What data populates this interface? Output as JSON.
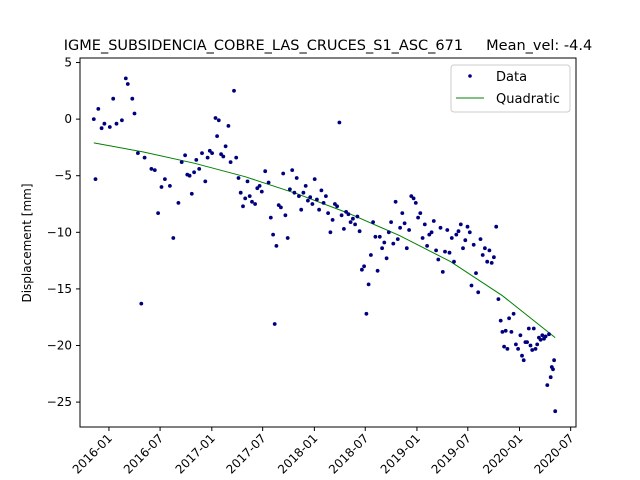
{
  "chart_data": {
    "type": "scatter",
    "title": "IGME_SUBSIDENCIA_COBRE_LAS_CRUCES_S1_ASC_671     Mean_vel: -4.4",
    "xlabel": "",
    "ylabel": "Displacement [mm]",
    "xlim": [
      "2015-09-20",
      "2020-07-20"
    ],
    "ylim": [
      -27.2,
      5.4
    ],
    "x_ticks": [
      "2016-01",
      "2016-07",
      "2017-01",
      "2017-07",
      "2018-01",
      "2018-07",
      "2019-01",
      "2019-07",
      "2020-01",
      "2020-07"
    ],
    "y_ticks": [
      5,
      0,
      -5,
      -10,
      -15,
      -20,
      -25
    ],
    "legend_position": "top-right",
    "colors": {
      "data": "#00007f",
      "fit": "#008000",
      "axes": "#000000"
    },
    "series": [
      {
        "name": "Data",
        "style": "markers",
        "points": [
          [
            "2015-11-08",
            0.0
          ],
          [
            "2015-11-14",
            -5.3
          ],
          [
            "2015-11-24",
            0.9
          ],
          [
            "2015-12-06",
            -0.8
          ],
          [
            "2015-12-16",
            -0.4
          ],
          [
            "2016-01-04",
            -0.7
          ],
          [
            "2016-01-16",
            1.8
          ],
          [
            "2016-01-28",
            -0.4
          ],
          [
            "2016-02-16",
            -0.1
          ],
          [
            "2016-03-01",
            3.6
          ],
          [
            "2016-03-08",
            3.1
          ],
          [
            "2016-03-24",
            1.8
          ],
          [
            "2016-04-01",
            0.5
          ],
          [
            "2016-04-13",
            -3.0
          ],
          [
            "2016-04-25",
            -16.3
          ],
          [
            "2016-05-07",
            -3.4
          ],
          [
            "2016-05-31",
            -4.4
          ],
          [
            "2016-06-12",
            -4.5
          ],
          [
            "2016-06-24",
            -8.3
          ],
          [
            "2016-07-06",
            -6.0
          ],
          [
            "2016-07-18",
            -5.3
          ],
          [
            "2016-08-05",
            -5.9
          ],
          [
            "2016-08-17",
            -10.5
          ],
          [
            "2016-09-04",
            -7.4
          ],
          [
            "2016-09-16",
            -3.8
          ],
          [
            "2016-09-28",
            -3.2
          ],
          [
            "2016-10-06",
            -4.9
          ],
          [
            "2016-10-14",
            -5.0
          ],
          [
            "2016-10-22",
            -6.6
          ],
          [
            "2016-10-30",
            -4.7
          ],
          [
            "2016-11-07",
            -3.6
          ],
          [
            "2016-11-17",
            -4.4
          ],
          [
            "2016-11-27",
            -3.0
          ],
          [
            "2016-12-09",
            -5.5
          ],
          [
            "2016-12-17",
            -3.4
          ],
          [
            "2016-12-25",
            -2.8
          ],
          [
            "2017-01-02",
            -3.0
          ],
          [
            "2017-01-14",
            0.1
          ],
          [
            "2017-01-20",
            -1.5
          ],
          [
            "2017-01-26",
            -0.1
          ],
          [
            "2017-02-03",
            -3.1
          ],
          [
            "2017-02-11",
            -3.3
          ],
          [
            "2017-02-19",
            -2.4
          ],
          [
            "2017-03-01",
            -0.6
          ],
          [
            "2017-03-09",
            -3.8
          ],
          [
            "2017-03-21",
            2.5
          ],
          [
            "2017-03-29",
            -3.4
          ],
          [
            "2017-04-06",
            -5.2
          ],
          [
            "2017-04-14",
            -6.5
          ],
          [
            "2017-04-22",
            -7.7
          ],
          [
            "2017-04-30",
            -7.0
          ],
          [
            "2017-05-08",
            -5.5
          ],
          [
            "2017-05-16",
            -6.8
          ],
          [
            "2017-05-24",
            -7.3
          ],
          [
            "2017-06-04",
            -7.5
          ],
          [
            "2017-06-12",
            -6.1
          ],
          [
            "2017-06-20",
            -5.9
          ],
          [
            "2017-06-28",
            -6.4
          ],
          [
            "2017-07-10",
            -4.6
          ],
          [
            "2017-07-22",
            -5.6
          ],
          [
            "2017-07-30",
            -8.7
          ],
          [
            "2017-08-07",
            -10.2
          ],
          [
            "2017-08-13",
            -18.1
          ],
          [
            "2017-08-19",
            -11.2
          ],
          [
            "2017-08-27",
            -7.6
          ],
          [
            "2017-09-04",
            -7.8
          ],
          [
            "2017-09-12",
            -4.8
          ],
          [
            "2017-09-20",
            -8.5
          ],
          [
            "2017-09-28",
            -10.5
          ],
          [
            "2017-10-06",
            -6.2
          ],
          [
            "2017-10-14",
            -4.5
          ],
          [
            "2017-10-22",
            -6.5
          ],
          [
            "2017-10-30",
            -5.2
          ],
          [
            "2017-11-07",
            -6.8
          ],
          [
            "2017-11-15",
            -8.0
          ],
          [
            "2017-11-23",
            -6.5
          ],
          [
            "2017-12-01",
            -5.9
          ],
          [
            "2017-12-09",
            -7.2
          ],
          [
            "2017-12-17",
            -6.9
          ],
          [
            "2017-12-25",
            -7.5
          ],
          [
            "2018-01-02",
            -5.3
          ],
          [
            "2018-01-10",
            -7.1
          ],
          [
            "2018-01-18",
            -8.0
          ],
          [
            "2018-01-26",
            -6.3
          ],
          [
            "2018-02-03",
            -7.4
          ],
          [
            "2018-02-11",
            -6.8
          ],
          [
            "2018-02-19",
            -8.3
          ],
          [
            "2018-02-27",
            -10.0
          ],
          [
            "2018-03-07",
            -8.9
          ],
          [
            "2018-03-15",
            -7.5
          ],
          [
            "2018-03-23",
            -7.7
          ],
          [
            "2018-03-31",
            -0.3
          ],
          [
            "2018-04-08",
            -8.5
          ],
          [
            "2018-04-16",
            -9.7
          ],
          [
            "2018-04-24",
            -8.2
          ],
          [
            "2018-05-02",
            -8.4
          ],
          [
            "2018-05-10",
            -9.1
          ],
          [
            "2018-05-18",
            -8.8
          ],
          [
            "2018-05-26",
            -9.3
          ],
          [
            "2018-06-03",
            -8.6
          ],
          [
            "2018-06-11",
            -9.9
          ],
          [
            "2018-06-19",
            -13.3
          ],
          [
            "2018-06-27",
            -13.0
          ],
          [
            "2018-07-05",
            -17.2
          ],
          [
            "2018-07-13",
            -14.6
          ],
          [
            "2018-07-21",
            -12.0
          ],
          [
            "2018-07-29",
            -9.1
          ],
          [
            "2018-08-06",
            -10.4
          ],
          [
            "2018-08-14",
            -13.4
          ],
          [
            "2018-08-22",
            -10.4
          ],
          [
            "2018-08-30",
            -11.4
          ],
          [
            "2018-09-07",
            -10.9
          ],
          [
            "2018-09-15",
            -12.3
          ],
          [
            "2018-09-23",
            -10.0
          ],
          [
            "2018-10-01",
            -9.1
          ],
          [
            "2018-10-09",
            -11.0
          ],
          [
            "2018-10-17",
            -7.3
          ],
          [
            "2018-10-25",
            -10.6
          ],
          [
            "2018-11-02",
            -9.6
          ],
          [
            "2018-11-10",
            -8.3
          ],
          [
            "2018-11-18",
            -9.2
          ],
          [
            "2018-11-26",
            -11.4
          ],
          [
            "2018-12-04",
            -9.8
          ],
          [
            "2018-12-12",
            -6.8
          ],
          [
            "2018-12-20",
            -7.0
          ],
          [
            "2018-12-28",
            -7.4
          ],
          [
            "2019-01-05",
            -8.7
          ],
          [
            "2019-01-13",
            -8.3
          ],
          [
            "2019-01-21",
            -10.5
          ],
          [
            "2019-01-29",
            -9.3
          ],
          [
            "2019-02-06",
            -11.2
          ],
          [
            "2019-02-14",
            -10.2
          ],
          [
            "2019-02-22",
            -10.0
          ],
          [
            "2019-03-02",
            -9.0
          ],
          [
            "2019-03-10",
            -11.6
          ],
          [
            "2019-03-18",
            -12.4
          ],
          [
            "2019-03-26",
            -9.6
          ],
          [
            "2019-04-03",
            -13.5
          ],
          [
            "2019-04-11",
            -11.7
          ],
          [
            "2019-04-19",
            -9.8
          ],
          [
            "2019-04-27",
            -11.8
          ],
          [
            "2019-05-05",
            -10.5
          ],
          [
            "2019-05-13",
            -12.6
          ],
          [
            "2019-05-21",
            -10.2
          ],
          [
            "2019-05-29",
            -9.9
          ],
          [
            "2019-06-06",
            -9.3
          ],
          [
            "2019-06-14",
            -11.4
          ],
          [
            "2019-06-22",
            -10.7
          ],
          [
            "2019-06-30",
            -9.5
          ],
          [
            "2019-07-08",
            -10.0
          ],
          [
            "2019-07-14",
            -14.7
          ],
          [
            "2019-07-22",
            -11.1
          ],
          [
            "2019-07-30",
            -13.6
          ],
          [
            "2019-08-07",
            -15.3
          ],
          [
            "2019-08-15",
            -10.6
          ],
          [
            "2019-08-23",
            -12.0
          ],
          [
            "2019-08-31",
            -11.4
          ],
          [
            "2019-09-08",
            -12.6
          ],
          [
            "2019-09-16",
            -11.6
          ],
          [
            "2019-09-24",
            -12.7
          ],
          [
            "2019-10-02",
            -12.2
          ],
          [
            "2019-10-10",
            -9.5
          ],
          [
            "2019-10-18",
            -15.9
          ],
          [
            "2019-10-26",
            -17.8
          ],
          [
            "2019-11-01",
            -18.8
          ],
          [
            "2019-11-07",
            -20.1
          ],
          [
            "2019-11-13",
            -18.7
          ],
          [
            "2019-11-19",
            -20.3
          ],
          [
            "2019-11-25",
            -17.6
          ],
          [
            "2019-12-03",
            -18.8
          ],
          [
            "2019-12-11",
            -17.2
          ],
          [
            "2019-12-19",
            -19.9
          ],
          [
            "2019-12-27",
            -20.3
          ],
          [
            "2020-01-04",
            -19.1
          ],
          [
            "2020-01-10",
            -20.9
          ],
          [
            "2020-01-16",
            -21.3
          ],
          [
            "2020-01-22",
            -19.7
          ],
          [
            "2020-01-28",
            -19.7
          ],
          [
            "2020-02-03",
            -18.5
          ],
          [
            "2020-02-09",
            -20.0
          ],
          [
            "2020-02-15",
            -20.4
          ],
          [
            "2020-02-21",
            -18.5
          ],
          [
            "2020-02-27",
            -20.3
          ],
          [
            "2020-03-04",
            -19.9
          ],
          [
            "2020-03-10",
            -19.3
          ],
          [
            "2020-03-16",
            -19.5
          ],
          [
            "2020-03-22",
            -19.1
          ],
          [
            "2020-03-28",
            -19.4
          ],
          [
            "2020-04-03",
            -19.2
          ],
          [
            "2020-04-09",
            -23.5
          ],
          [
            "2020-04-15",
            -19.0
          ],
          [
            "2020-04-21",
            -22.8
          ],
          [
            "2020-04-25",
            -21.9
          ],
          [
            "2020-04-29",
            -22.1
          ],
          [
            "2020-05-03",
            -21.3
          ],
          [
            "2020-05-07",
            -25.8
          ]
        ]
      },
      {
        "name": "Quadratic",
        "style": "line",
        "points": [
          [
            "2015-11-08",
            -2.1
          ],
          [
            "2016-05-01",
            -2.9
          ],
          [
            "2016-11-01",
            -3.9
          ],
          [
            "2017-05-01",
            -5.1
          ],
          [
            "2017-11-01",
            -6.6
          ],
          [
            "2018-05-01",
            -8.3
          ],
          [
            "2018-11-01",
            -10.3
          ],
          [
            "2019-05-01",
            -12.6
          ],
          [
            "2019-11-01",
            -15.6
          ],
          [
            "2020-05-07",
            -19.3
          ]
        ]
      }
    ]
  }
}
